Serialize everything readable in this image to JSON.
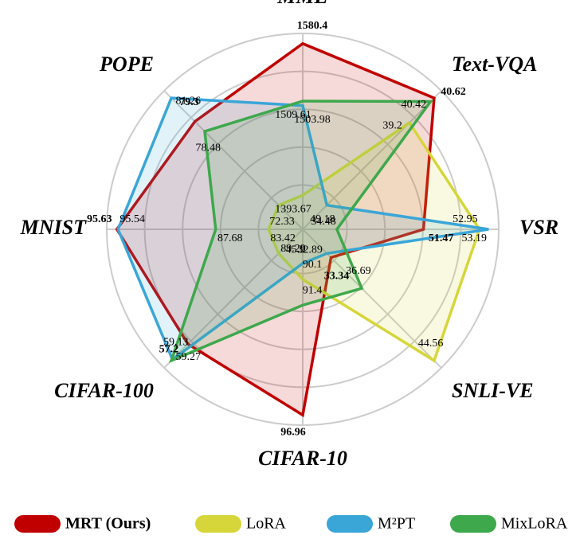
{
  "chart_data": {
    "type": "radar",
    "categories": [
      "MME",
      "Text-VQA",
      "VSR",
      "SNLI-VE",
      "CIFAR-10",
      "CIFAR-100",
      "MNIST",
      "POPE"
    ],
    "series": [
      {
        "name": "MRT (Ours)",
        "color": "#c00000",
        "values": [
          1580.4,
          40.62,
          51.47,
          33.34,
          96.96,
          57.2,
          95.63,
          79.3
        ]
      },
      {
        "name": "LoRA",
        "color": "#d6d63a",
        "values": [
          1393.67,
          39.2,
          52.95,
          44.56,
          90.1,
          45.9,
          83.42,
          72.33
        ]
      },
      {
        "name": "M²PT",
        "color": "#3aa6d8",
        "values": [
          1503.98,
          34.48,
          53.19,
          32.89,
          89.29,
          59.13,
          95.54,
          81.26
        ]
      },
      {
        "name": "MixLoRA",
        "color": "#3ea84c",
        "values": [
          1509.61,
          40.42,
          49.18,
          36.69,
          91.4,
          59.27,
          87.68,
          78.48
        ]
      }
    ],
    "grid": true
  }
}
